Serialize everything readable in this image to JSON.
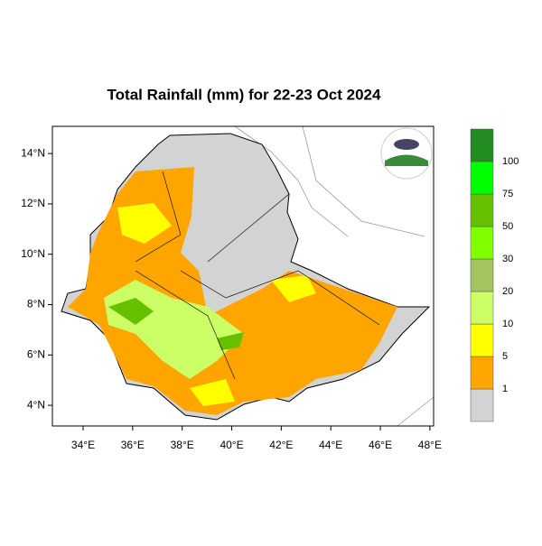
{
  "title": "Total Rainfall (mm) for 22-23 Oct 2024",
  "xlim": [
    32.76,
    48.15
  ],
  "ylim": [
    3.18,
    15.08
  ],
  "xticks": [
    {
      "value": 34,
      "label": "34°E"
    },
    {
      "value": 36,
      "label": "36°E"
    },
    {
      "value": 38,
      "label": "38°E"
    },
    {
      "value": 40,
      "label": "40°E"
    },
    {
      "value": 42,
      "label": "42°E"
    },
    {
      "value": 44,
      "label": "44°E"
    },
    {
      "value": 46,
      "label": "46°E"
    },
    {
      "value": 48,
      "label": "48°E"
    }
  ],
  "yticks": [
    {
      "value": 4,
      "label": "4°N"
    },
    {
      "value": 6,
      "label": "6°N"
    },
    {
      "value": 8,
      "label": "8°N"
    },
    {
      "value": 10,
      "label": "10°N"
    },
    {
      "value": 12,
      "label": "12°N"
    },
    {
      "value": 14,
      "label": "14°N"
    }
  ],
  "colorbar": {
    "levels": [
      1,
      5,
      10,
      20,
      30,
      50,
      75,
      100
    ],
    "colors": [
      "#d3d3d3",
      "#ffa500",
      "#ffff00",
      "#ccff66",
      "#a3c460",
      "#80ff00",
      "#66c000",
      "#00ff00",
      "#228b22"
    ]
  }
}
